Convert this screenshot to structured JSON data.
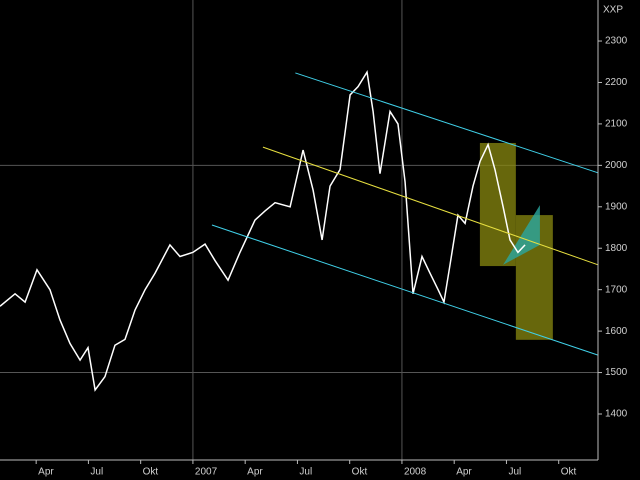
{
  "chart_data": {
    "type": "line",
    "title": "XXP",
    "background": "#000000",
    "grid_color": "#555555",
    "x": [
      2006.077,
      2006.149,
      2006.197,
      2006.254,
      2006.316,
      2006.364,
      2006.412,
      2006.46,
      2006.498,
      2006.532,
      2006.579,
      2006.627,
      2006.675,
      2006.723,
      2006.771,
      2006.819,
      2006.89,
      2006.938,
      2007.0,
      2007.058,
      2007.106,
      2007.168,
      2007.225,
      2007.297,
      2007.345,
      2007.393,
      2007.465,
      2007.527,
      2007.575,
      2007.618,
      2007.656,
      2007.704,
      2007.752,
      2007.79,
      2007.833,
      2007.862,
      2007.895,
      2007.943,
      2007.981,
      2008.015,
      2008.053,
      2008.096,
      2008.134,
      2008.173,
      2008.201,
      2008.23,
      2008.268,
      2008.302,
      2008.34,
      2008.374,
      2008.412,
      2008.445,
      2008.484,
      2008.517,
      2008.555,
      2008.589
    ],
    "series": [
      {
        "name": "XXP",
        "color": "#ffffff",
        "values": [
          1660,
          1690,
          1670,
          1748,
          1700,
          1627,
          1570,
          1530,
          1560,
          1458,
          1490,
          1566,
          1580,
          1651,
          1700,
          1740,
          1808,
          1780,
          1790,
          1810,
          1770,
          1723,
          1790,
          1868,
          1890,
          1910,
          1900,
          2037,
          1940,
          1820,
          1950,
          1990,
          2170,
          2190,
          2225,
          2130,
          1980,
          2130,
          2100,
          1960,
          1690,
          1780,
          1740,
          1700,
          1670,
          1760,
          1880,
          1860,
          1950,
          2010,
          2050,
          1990,
          1900,
          1820,
          1790,
          1808
        ]
      }
    ],
    "xlim": [
      2006.077,
      2008.938
    ],
    "ylim": [
      1289,
      2399
    ],
    "xticks": [
      {
        "value": 2006.25,
        "label": "Apr"
      },
      {
        "value": 2006.5,
        "label": "Jul"
      },
      {
        "value": 2006.75,
        "label": "Okt"
      },
      2007,
      {
        "value": 2007.25,
        "label": "Apr"
      },
      {
        "value": 2007.5,
        "label": "Jul"
      },
      {
        "value": 2007.75,
        "label": "Okt"
      },
      2008,
      {
        "value": 2008.25,
        "label": "Apr"
      },
      {
        "value": 2008.5,
        "label": "Jul"
      },
      {
        "value": 2008.75,
        "label": "Okt"
      }
    ],
    "yticks": [
      1400,
      1500,
      1600,
      1700,
      1800,
      1900,
      2000,
      2100,
      2200,
      2300
    ],
    "hgrid": [
      2000,
      1500
    ],
    "vgrid": [
      2007,
      2008
    ],
    "annotations": {
      "lines": [
        {
          "x": [
            2007.49,
            2008.938
          ],
          "y": [
            2223,
            1982
          ],
          "color": "#40d0e8"
        },
        {
          "x": [
            2007.091,
            2008.938
          ],
          "y": [
            1856,
            1542
          ],
          "color": "#40d0e8"
        },
        {
          "x": [
            2007.335,
            2008.938
          ],
          "y": [
            2044,
            1760
          ],
          "color": "#e8e040"
        }
      ],
      "boxes": [
        {
          "x": [
            2008.373,
            2008.545
          ],
          "y": [
            1757,
            2054
          ],
          "color": "#8a8a10"
        },
        {
          "x": [
            2008.545,
            2008.722
          ],
          "y": [
            1579,
            1880
          ],
          "color": "#8a8a10"
        }
      ],
      "polygons": [
        {
          "x": [
            2008.484,
            2008.66,
            2008.66
          ],
          "y": [
            1760,
            1904,
            1808
          ],
          "color": "#2aa8a0"
        }
      ]
    }
  }
}
